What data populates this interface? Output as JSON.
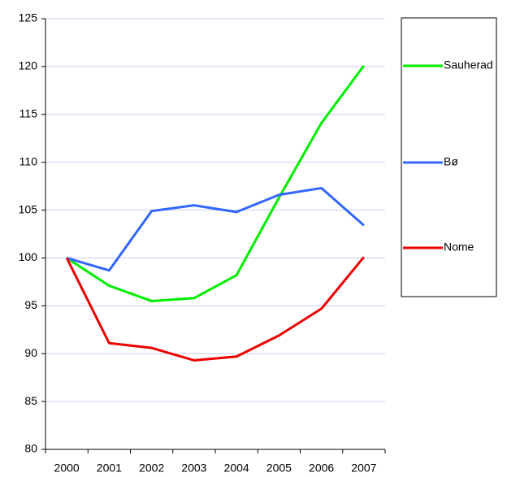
{
  "chart_data": {
    "type": "line",
    "categories": [
      "2000",
      "2001",
      "2002",
      "2003",
      "2004",
      "2005",
      "2006",
      "2007"
    ],
    "series": [
      {
        "name": "Sauherad",
        "color": "#00ee00",
        "values": [
          100,
          97.1,
          95.5,
          95.8,
          98.2,
          106.3,
          114.1,
          120.1
        ]
      },
      {
        "name": "Bø",
        "color": "#3366ff",
        "values": [
          100,
          98.7,
          104.9,
          105.5,
          104.8,
          106.6,
          107.3,
          103.4
        ]
      },
      {
        "name": "Nome",
        "color": "#ee0000",
        "values": [
          100,
          91.1,
          90.6,
          89.3,
          89.7,
          91.9,
          94.7,
          100.1
        ]
      }
    ],
    "ylim": [
      80,
      125
    ],
    "yticks": [
      80,
      85,
      90,
      95,
      100,
      105,
      110,
      115,
      120,
      125
    ],
    "grid": true,
    "legend": "right"
  }
}
